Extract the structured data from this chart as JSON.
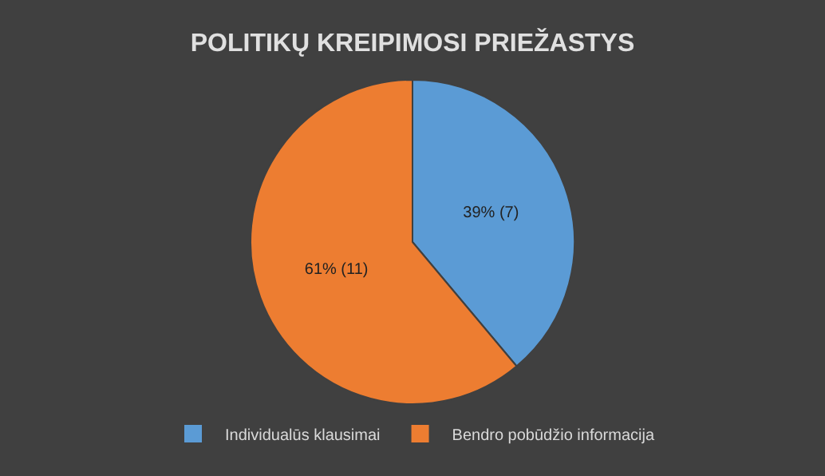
{
  "chart_data": {
    "type": "pie",
    "title": "POLITIKŲ KREIPIMOSI PRIEŽASTYS",
    "categories": [
      "Individualūs klausimai",
      "Bendro pobūdžio informacija"
    ],
    "values": [
      7,
      11
    ],
    "value_labels": [
      "39% (7)",
      "61% (11)"
    ],
    "colors": [
      "#5b9bd5",
      "#ed7d31"
    ],
    "legend": "bottom"
  }
}
